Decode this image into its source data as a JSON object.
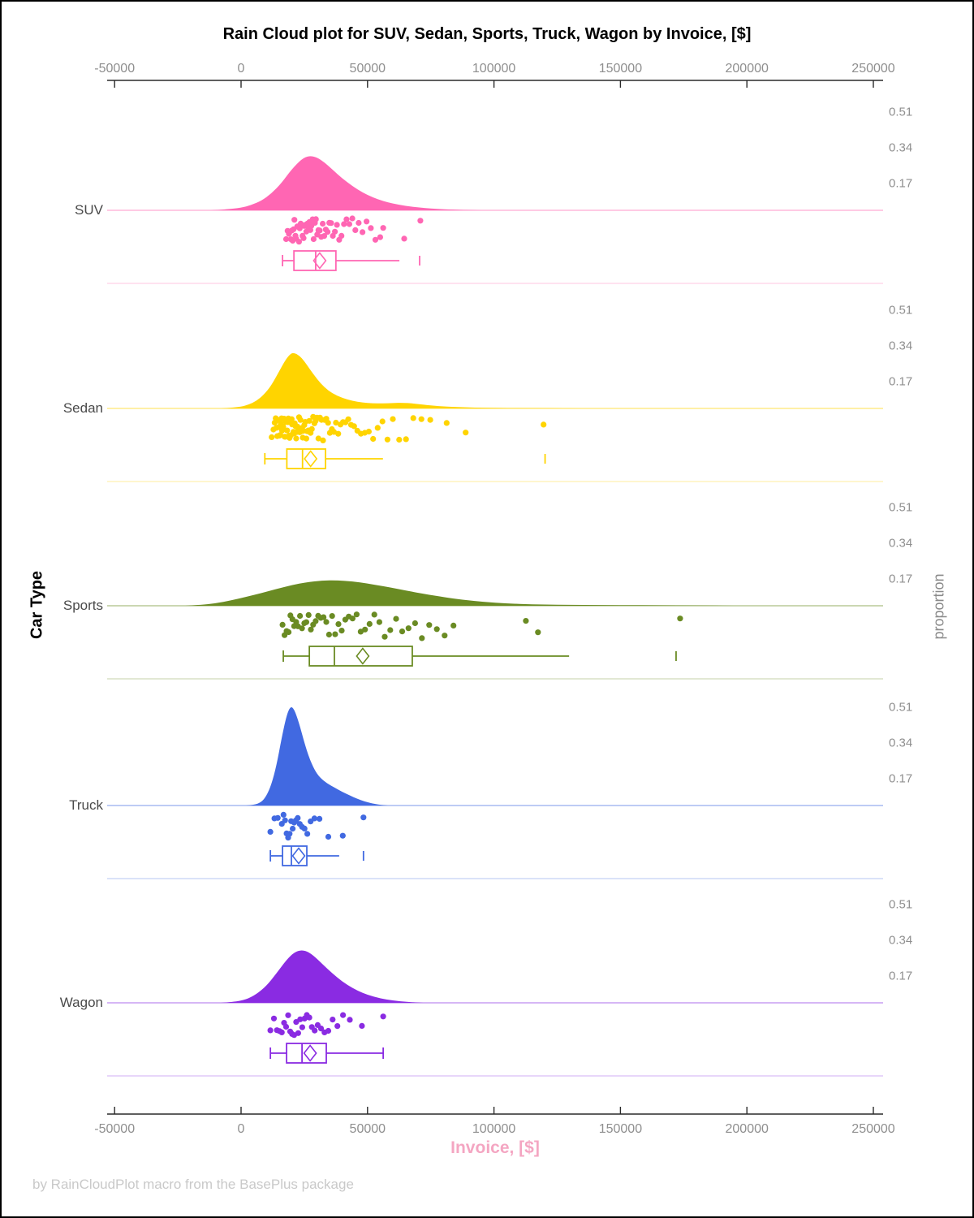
{
  "title": "Rain Cloud plot for SUV, Sedan, Sports, Truck, Wagon by Invoice, [$]",
  "footer": "by RainCloudPlot macro from the BasePlus package",
  "x_axis": {
    "label": "Invoice, [$]",
    "tick_values": [
      -50000,
      0,
      50000,
      100000,
      150000,
      200000,
      250000
    ],
    "tick_labels": [
      "-50000",
      "0",
      "50000",
      "100000",
      "150000",
      "200000",
      "250000"
    ]
  },
  "left_axis": {
    "label": "Car Type"
  },
  "right_axis": {
    "label": "proportion",
    "tick_values": [
      0.17,
      0.34,
      0.51
    ],
    "tick_labels": [
      "0.17",
      "0.34",
      "0.51"
    ]
  },
  "chart_data": {
    "type": "raincloud",
    "title": "Rain Cloud plot for SUV, Sedan, Sports, Truck, Wagon by Invoice, [$]",
    "xlabel": "Invoice, [$]",
    "ylabel_left": "Car Type",
    "ylabel_right": "proportion",
    "x_range": [
      -53000,
      254000
    ],
    "proportion_ticks": [
      0.17,
      0.34,
      0.51
    ],
    "categories": [
      "SUV",
      "Sedan",
      "Sports",
      "Truck",
      "Wagon"
    ],
    "series": [
      {
        "name": "SUV",
        "color": "#ff66b3",
        "density": {
          "x": [
            -12000,
            -6000,
            0,
            4000,
            8000,
            12000,
            16000,
            20000,
            24000,
            27000,
            30000,
            33000,
            36000,
            40000,
            44000,
            48000,
            52000,
            56000,
            60000,
            65000,
            70000,
            75000,
            80000,
            88000,
            95000
          ],
          "h": [
            0,
            0.004,
            0.012,
            0.025,
            0.045,
            0.08,
            0.13,
            0.195,
            0.245,
            0.26,
            0.252,
            0.228,
            0.195,
            0.152,
            0.115,
            0.085,
            0.062,
            0.045,
            0.032,
            0.021,
            0.014,
            0.009,
            0.005,
            0.002,
            0
          ]
        },
        "box": {
          "whisker_low": 16400,
          "q1": 20900,
          "median": 29500,
          "mean": 31100,
          "q3": 37500,
          "whisker_high": 62600,
          "outliers": [
            70600
          ],
          "cap_low": true,
          "cap_high": false
        },
        "rain": [
          17800,
          18400,
          18900,
          19300,
          19700,
          20100,
          20400,
          20800,
          21100,
          21500,
          21800,
          22200,
          22500,
          22900,
          23200,
          23600,
          23900,
          24300,
          24700,
          25000,
          25400,
          25800,
          26200,
          26600,
          27000,
          27400,
          27800,
          28300,
          28700,
          29200,
          29600,
          30100,
          30600,
          31100,
          31700,
          32300,
          32900,
          33500,
          34200,
          34900,
          35600,
          36300,
          37100,
          37900,
          38800,
          39700,
          40700,
          41700,
          42800,
          44000,
          45200,
          46500,
          48000,
          49600,
          51300,
          53100,
          55000,
          56200,
          64500,
          70900
        ]
      },
      {
        "name": "Sedan",
        "color": "#ffd400",
        "density": {
          "x": [
            -8000,
            -4000,
            0,
            3000,
            6000,
            9000,
            12000,
            15000,
            17500,
            19500,
            21000,
            23000,
            25000,
            27000,
            30000,
            33000,
            36000,
            40000,
            44000,
            48000,
            52000,
            56000,
            60000,
            64000,
            68000,
            72000,
            78000,
            85000,
            95000,
            110000,
            125000,
            135000
          ],
          "h": [
            0,
            0.003,
            0.008,
            0.018,
            0.035,
            0.065,
            0.11,
            0.175,
            0.23,
            0.26,
            0.265,
            0.252,
            0.225,
            0.19,
            0.14,
            0.1,
            0.072,
            0.05,
            0.036,
            0.028,
            0.024,
            0.024,
            0.026,
            0.027,
            0.024,
            0.018,
            0.011,
            0.006,
            0.003,
            0.0015,
            0.001,
            0
          ]
        },
        "box": {
          "whisker_low": 9400,
          "q1": 18100,
          "median": 24300,
          "mean": 27500,
          "q3": 33400,
          "whisker_high": 56100,
          "outliers": [
            120200
          ],
          "cap_low": true,
          "cap_high": false
        },
        "rain": [
          12100,
          12800,
          13300,
          13700,
          14000,
          14300,
          14600,
          14900,
          15200,
          15500,
          15700,
          16000,
          16200,
          16500,
          16700,
          17000,
          17200,
          17500,
          17700,
          18000,
          18200,
          18500,
          18700,
          19000,
          19200,
          19500,
          19700,
          20000,
          20200,
          20500,
          20700,
          21000,
          21200,
          21500,
          21800,
          22000,
          22300,
          22600,
          22900,
          23200,
          23500,
          23800,
          24100,
          24400,
          24700,
          25000,
          25400,
          25800,
          26200,
          26600,
          27000,
          27500,
          28000,
          28500,
          29000,
          29500,
          30000,
          30600,
          31200,
          31800,
          32400,
          33000,
          33700,
          34400,
          35100,
          35900,
          36700,
          37500,
          38400,
          39300,
          40300,
          41300,
          42400,
          43500,
          44700,
          46000,
          47400,
          48900,
          50500,
          52200,
          54000,
          55900,
          57900,
          60000,
          62500,
          65200,
          68100,
          71300,
          74800,
          81300,
          88800,
          119600
        ]
      },
      {
        "name": "Sports",
        "color": "#6a8b23",
        "density": {
          "x": [
            -22000,
            -16000,
            -10000,
            -4000,
            2000,
            8000,
            14000,
            20000,
            26000,
            32000,
            38000,
            44000,
            50000,
            56000,
            62000,
            68000,
            74000,
            80000,
            88000,
            96000,
            105000,
            115000,
            125000,
            135000,
            150000,
            165000,
            180000,
            195000
          ],
          "h": [
            0,
            0.004,
            0.012,
            0.025,
            0.042,
            0.06,
            0.08,
            0.098,
            0.112,
            0.12,
            0.121,
            0.116,
            0.106,
            0.094,
            0.08,
            0.066,
            0.053,
            0.041,
            0.028,
            0.018,
            0.011,
            0.007,
            0.005,
            0.004,
            0.003,
            0.0025,
            0.0015,
            0
          ]
        },
        "box": {
          "whisker_low": 16700,
          "q1": 27000,
          "median": 36900,
          "mean": 48100,
          "q3": 67700,
          "whisker_high": 129700,
          "outliers": [
            172000
          ],
          "cap_low": true,
          "cap_high": false
        },
        "rain": [
          16400,
          17200,
          18000,
          18800,
          19500,
          20300,
          21000,
          21800,
          22500,
          23300,
          24100,
          25000,
          25800,
          26700,
          27600,
          28500,
          29500,
          30500,
          31500,
          32600,
          33700,
          34800,
          36000,
          37200,
          38500,
          39800,
          41200,
          42600,
          44100,
          45700,
          47300,
          49000,
          50800,
          52700,
          54700,
          56800,
          59000,
          61300,
          63700,
          66200,
          68800,
          71500,
          74400,
          77400,
          80500,
          84000,
          112600,
          117400,
          173600
        ]
      },
      {
        "name": "Truck",
        "color": "#4169e1",
        "density": {
          "x": [
            2000,
            5000,
            8000,
            10000,
            12000,
            14000,
            16000,
            18000,
            19500,
            21000,
            23000,
            25000,
            27000,
            29000,
            31000,
            34000,
            37000,
            40000,
            43000,
            46000,
            49000,
            53000,
            58000
          ],
          "h": [
            0,
            0.003,
            0.015,
            0.045,
            0.1,
            0.19,
            0.32,
            0.43,
            0.472,
            0.46,
            0.39,
            0.3,
            0.225,
            0.17,
            0.135,
            0.105,
            0.085,
            0.065,
            0.048,
            0.032,
            0.018,
            0.006,
            0
          ]
        },
        "box": {
          "whisker_low": 11600,
          "q1": 16400,
          "median": 19900,
          "mean": 22800,
          "q3": 26000,
          "whisker_high": 38800,
          "outliers": [
            48400
          ],
          "cap_low": true,
          "cap_high": false
        },
        "rain": [
          11600,
          13200,
          14500,
          16100,
          16800,
          17400,
          18000,
          18600,
          19200,
          19800,
          20400,
          21000,
          21700,
          22400,
          23200,
          24100,
          25100,
          26200,
          27500,
          29000,
          31000,
          34500,
          40200,
          48400
        ]
      },
      {
        "name": "Wagon",
        "color": "#8a2be2",
        "density": {
          "x": [
            -8000,
            -3000,
            2000,
            6000,
            10000,
            14000,
            18000,
            21000,
            24000,
            27000,
            30000,
            34000,
            38000,
            42000,
            46000,
            50000,
            55000,
            60000,
            66000,
            72000
          ],
          "h": [
            0,
            0.004,
            0.015,
            0.04,
            0.08,
            0.14,
            0.205,
            0.24,
            0.252,
            0.24,
            0.21,
            0.163,
            0.12,
            0.085,
            0.058,
            0.038,
            0.021,
            0.011,
            0.004,
            0
          ]
        },
        "box": {
          "whisker_low": 11600,
          "q1": 18000,
          "median": 24100,
          "mean": 27300,
          "q3": 33700,
          "whisker_high": 56200,
          "outliers": [],
          "cap_low": true,
          "cap_high": true
        },
        "rain": [
          11600,
          13000,
          14200,
          15200,
          16100,
          17000,
          17800,
          18600,
          19400,
          20200,
          21000,
          21800,
          22600,
          23400,
          24200,
          25100,
          26000,
          27000,
          28000,
          29100,
          30300,
          31600,
          33000,
          34500,
          36200,
          38100,
          40300,
          43000,
          47800,
          56200
        ]
      }
    ]
  }
}
